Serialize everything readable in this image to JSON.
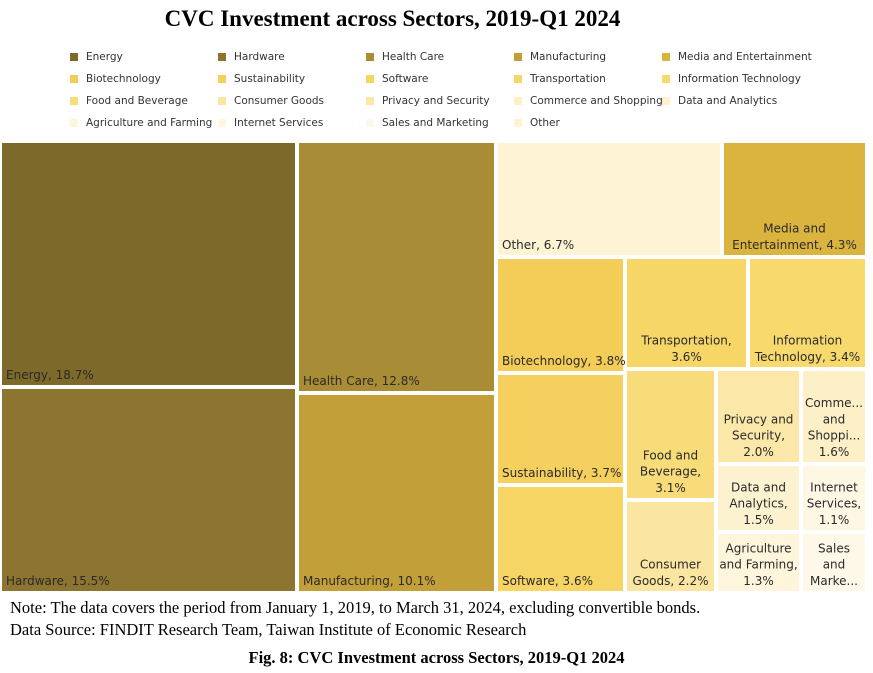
{
  "chart_data": {
    "type": "treemap",
    "title": "CVC Investment across Sectors, 2019-Q1 2024",
    "unit": "%",
    "series": [
      {
        "name": "Energy",
        "value": 18.7,
        "label": "Energy, 18.7%",
        "color": "#7d6a2b"
      },
      {
        "name": "Hardware",
        "value": 15.5,
        "label": "Hardware, 15.5%",
        "color": "#8b7530"
      },
      {
        "name": "Health Care",
        "value": 12.8,
        "label": "Health Care, 12.8%",
        "color": "#a98d36"
      },
      {
        "name": "Manufacturing",
        "value": 10.1,
        "label": "Manufacturing, 10.1%",
        "color": "#c39f3a"
      },
      {
        "name": "Media and Entertainment",
        "value": 4.3,
        "label": "Media and Entertainment, 4.3%",
        "color": "#dbb43f"
      },
      {
        "name": "Biotechnology",
        "value": 3.8,
        "label": "Biotechnology, 3.8%",
        "color": "#f4cd58"
      },
      {
        "name": "Sustainability",
        "value": 3.7,
        "label": "Sustainability, 3.7%",
        "color": "#f6d05e"
      },
      {
        "name": "Software",
        "value": 3.6,
        "label": "Software, 3.6%",
        "color": "#f7d565"
      },
      {
        "name": "Transportation",
        "value": 3.6,
        "label": "Transportation, 3.6%",
        "color": "#f7d668"
      },
      {
        "name": "Information Technology",
        "value": 3.4,
        "label": "Information Technology, 3.4%",
        "color": "#f8d96e"
      },
      {
        "name": "Food and Beverage",
        "value": 3.1,
        "label": "Food and Beverage, 3.1%",
        "color": "#f8dc7a"
      },
      {
        "name": "Consumer Goods",
        "value": 2.2,
        "label": "Consumer Goods, 2.2%",
        "color": "#fae6a0"
      },
      {
        "name": "Privacy and Security",
        "value": 2.0,
        "label": "Privacy and Security, 2.0%",
        "color": "#fbe8a8"
      },
      {
        "name": "Commerce and Shopping",
        "value": 1.6,
        "label": "Commerce and Shopping, 1.6%",
        "color": "#fdf0c7"
      },
      {
        "name": "Data and Analytics",
        "value": 1.5,
        "label": "Data and Analytics, 1.5%",
        "color": "#fdf2cf"
      },
      {
        "name": "Agriculture and Farming",
        "value": 1.3,
        "label": "Agriculture and Farming, 1.3%",
        "color": "#fef5dc"
      },
      {
        "name": "Internet Services",
        "value": 1.1,
        "label": "Internet Services, 1.1%",
        "color": "#fef7e3"
      },
      {
        "name": "Sales and Marketing",
        "value": 1.0,
        "label": "Sales and Marketing",
        "color": "#fef8e8"
      },
      {
        "name": "Other",
        "value": 6.7,
        "label": "Other, 6.7%",
        "color": "#fef3d3"
      }
    ],
    "tile_labels": {
      "Energy": [
        "Energy, 18.7%"
      ],
      "Hardware": [
        "Hardware, 15.5%"
      ],
      "Health Care": [
        "Health Care, 12.8%"
      ],
      "Manufacturing": [
        "Manufacturing, 10.1%"
      ],
      "Media and Entertainment": [
        "Media and",
        "Entertainment, 4.3%"
      ],
      "Biotechnology": [
        "Biotechnology, 3.8%"
      ],
      "Sustainability": [
        "Sustainability, 3.7%"
      ],
      "Software": [
        "Software, 3.6%"
      ],
      "Transportation": [
        "Transportation,",
        "3.6%"
      ],
      "Information Technology": [
        "Information",
        "Technology, 3.4%"
      ],
      "Food and Beverage": [
        "Food and",
        "Beverage,",
        "3.1%"
      ],
      "Consumer Goods": [
        "Consumer",
        "Goods, 2.2%"
      ],
      "Privacy and Security": [
        "Privacy and",
        "Security,",
        "2.0%"
      ],
      "Commerce and Shopping": [
        "Comme...",
        "and",
        "Shoppi...",
        "1.6%"
      ],
      "Data and Analytics": [
        "Data and",
        "Analytics,",
        "1.5%"
      ],
      "Agriculture and Farming": [
        "Agriculture",
        "and Farming,",
        "1.3%"
      ],
      "Internet Services": [
        "Internet",
        "Services,",
        "1.1%"
      ],
      "Sales and Marketing": [
        "Sales",
        "and",
        "Marke..."
      ],
      "Other": [
        "Other, 6.7%"
      ]
    },
    "legend": [
      "Energy",
      "Hardware",
      "Health Care",
      "Manufacturing",
      "Media and Entertainment",
      "Biotechnology",
      "Sustainability",
      "Software",
      "Transportation",
      "Information Technology",
      "Food and Beverage",
      "Consumer Goods",
      "Privacy and Security",
      "Commerce and Shopping",
      "Data and Analytics",
      "Agriculture and Farming",
      "Internet Services",
      "Sales and Marketing",
      "Other"
    ],
    "legend_placement": "top"
  },
  "note": "Note: The data covers the period from January 1, 2019, to March 31, 2024, excluding convertible bonds.",
  "source": "Data Source: FINDIT Research Team, Taiwan Institute of Economic Research",
  "caption": "Fig. 8: CVC Investment across Sectors, 2019-Q1 2024"
}
